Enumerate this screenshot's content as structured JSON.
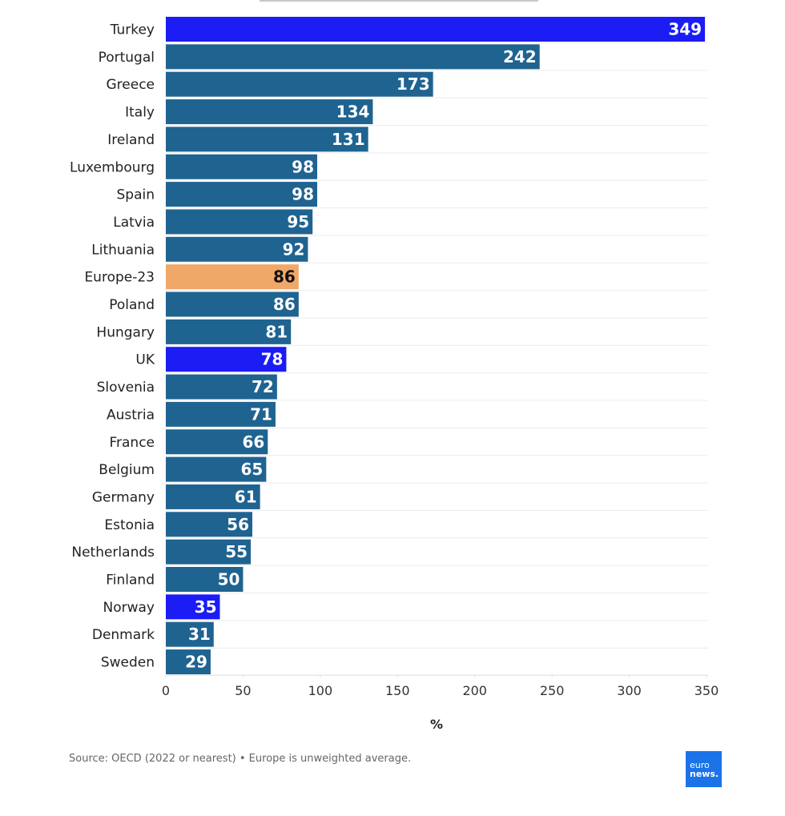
{
  "chart_data": {
    "type": "bar",
    "orientation": "horizontal",
    "title": "",
    "xlabel": "%",
    "ylabel": "",
    "xlim": [
      0,
      350
    ],
    "xticks": [
      0,
      50,
      100,
      150,
      200,
      250,
      300,
      350
    ],
    "grid": true,
    "categories": [
      "Turkey",
      "Portugal",
      "Greece",
      "Italy",
      "Ireland",
      "Luxembourg",
      "Spain",
      "Latvia",
      "Lithuania",
      "Europe-23",
      "Poland",
      "Hungary",
      "UK",
      "Slovenia",
      "Austria",
      "France",
      "Belgium",
      "Germany",
      "Estonia",
      "Netherlands",
      "Finland",
      "Norway",
      "Denmark",
      "Sweden"
    ],
    "values": [
      349,
      242,
      173,
      134,
      131,
      98,
      98,
      95,
      92,
      86,
      86,
      81,
      78,
      72,
      71,
      66,
      65,
      61,
      56,
      55,
      50,
      35,
      31,
      29
    ],
    "highlights": {
      "Turkey": "non-eu",
      "UK": "non-eu",
      "Norway": "non-eu",
      "Europe-23": "average"
    },
    "colors": {
      "default": "#1f6391",
      "non-eu": "#1c1cf5",
      "average": "#f0a868",
      "value_label_default": "#ffffff",
      "value_label_average": "#111111"
    }
  },
  "footer": {
    "source": "Source: OECD (2022 or nearest) • Europe is unweighted average.",
    "logo_top": "euro",
    "logo_bottom": "news."
  }
}
